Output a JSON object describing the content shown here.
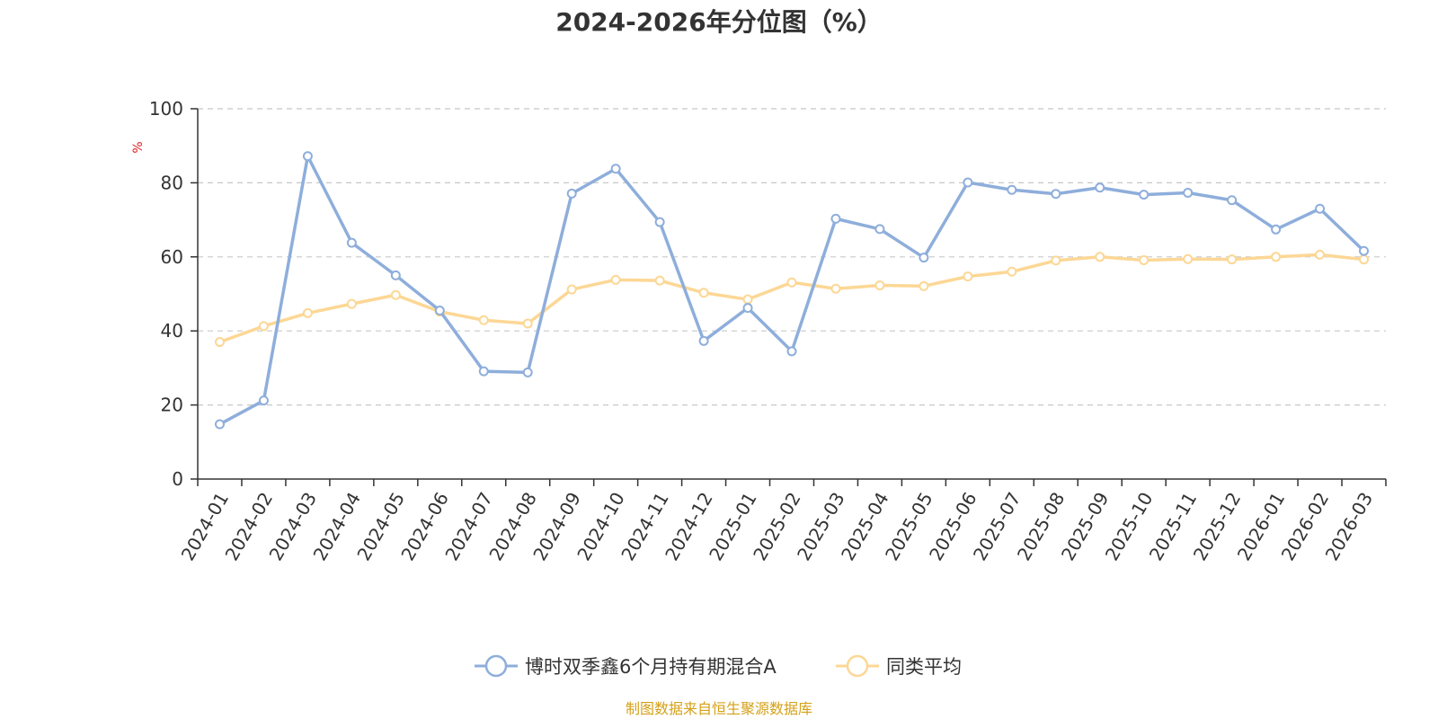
{
  "chart_data": {
    "type": "line",
    "title": "2024-2026年分位图（%）",
    "y_unit": "%",
    "ylim": [
      0,
      100
    ],
    "y_ticks": [
      0,
      20,
      40,
      60,
      80,
      100
    ],
    "grid": true,
    "legend_position": "bottom-center",
    "categories": [
      "2024-01",
      "2024-02",
      "2024-03",
      "2024-04",
      "2024-05",
      "2024-06",
      "2024-07",
      "2024-08",
      "2024-09",
      "2024-10",
      "2024-11",
      "2024-12",
      "2025-01",
      "2025-02",
      "2025-03",
      "2025-04",
      "2025-05",
      "2025-06",
      "2025-07",
      "2025-08",
      "2025-09",
      "2025-10",
      "2025-11",
      "2025-12",
      "2026-01",
      "2026-02",
      "2026-03"
    ],
    "series": [
      {
        "name": "博时双季鑫6个月持有期混合A",
        "color": "#8eaedb",
        "values": [
          14.8,
          21.2,
          87.2,
          63.8,
          55.0,
          45.5,
          29.1,
          28.8,
          77.1,
          83.8,
          69.4,
          37.3,
          46.2,
          34.5,
          70.3,
          67.5,
          59.8,
          80.1,
          78.1,
          77.0,
          78.7,
          76.8,
          77.3,
          75.3,
          67.4,
          73.0,
          61.6
        ]
      },
      {
        "name": "同类平均",
        "color": "#fcd795",
        "values": [
          37.0,
          41.3,
          44.8,
          47.3,
          49.7,
          45.2,
          42.9,
          42.0,
          51.2,
          53.8,
          53.6,
          50.3,
          48.5,
          53.1,
          51.4,
          52.3,
          52.1,
          54.7,
          56.0,
          59.0,
          60.0,
          59.1,
          59.4,
          59.3,
          60.0,
          60.6,
          59.3
        ]
      }
    ]
  },
  "source_note": "制图数据来自恒生聚源数据库",
  "colors": {
    "axis": "#333333",
    "grid": "#c8c8c8",
    "unit": "#e02020",
    "source": "#d4a017"
  }
}
